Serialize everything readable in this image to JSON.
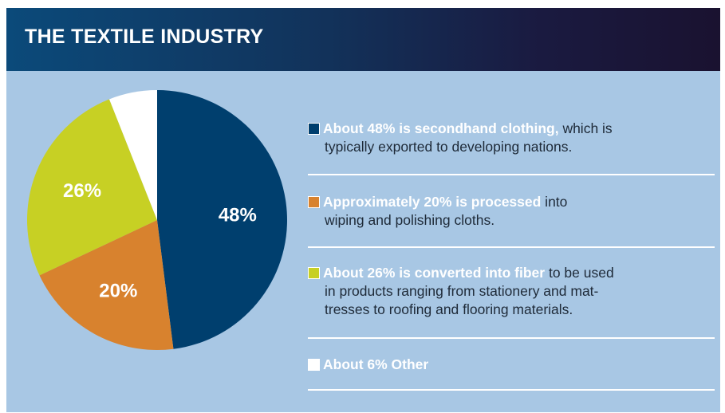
{
  "header": {
    "title": "THE TEXTILE INDUSTRY"
  },
  "chart_data": {
    "type": "pie",
    "title": "THE TEXTILE INDUSTRY",
    "slices": [
      {
        "label": "48%",
        "value": 48,
        "color": "#003f6e"
      },
      {
        "label": "20%",
        "value": 20,
        "color": "#d8822e"
      },
      {
        "label": "26%",
        "value": 26,
        "color": "#c7d024"
      },
      {
        "label": "",
        "value": 6,
        "color": "#ffffff"
      }
    ]
  },
  "legend": {
    "items": [
      {
        "swatch_color": "#003f6e",
        "bold": "About 48% is secondhand clothing,",
        "rest_line1": " which is",
        "rest_line2": "typically exported to developing nations.",
        "rest_line3": ""
      },
      {
        "swatch_color": "#d8822e",
        "bold": "Approximately 20% is processed",
        "rest_line1": " into",
        "rest_line2": "wiping and polishing cloths.",
        "rest_line3": ""
      },
      {
        "swatch_color": "#c7d024",
        "bold": "About 26% is converted into fiber",
        "rest_line1": " to be used",
        "rest_line2": "in products ranging from stationery and mat-",
        "rest_line3": "tresses to roofing and flooring materials."
      },
      {
        "swatch_color": "#ffffff",
        "bold": "About 6% Other",
        "rest_line1": "",
        "rest_line2": "",
        "rest_line3": ""
      }
    ]
  }
}
